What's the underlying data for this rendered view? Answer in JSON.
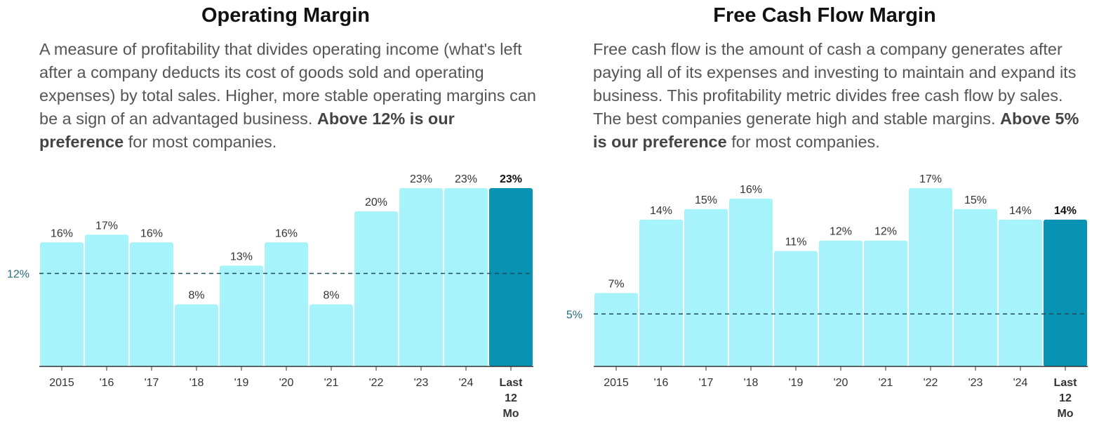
{
  "colors": {
    "bar": "#a7f3fb",
    "highlight": "#0892b3",
    "ref_line": "#1e4c5a",
    "ref_label": "#2a6b80",
    "axis": "#333333",
    "text": "#333333"
  },
  "panels": [
    {
      "title": "Operating Margin",
      "desc_pre": "A measure of profitability that divides operating income (what's left after a company deducts its cost of goods sold and operating expenses) by total sales. Higher, more stable operating margins can be a sign of an advantaged business. ",
      "desc_bold": "Above 12% is our preference",
      "desc_post": " for most companies."
    },
    {
      "title": "Free Cash Flow Margin",
      "desc_pre": "Free cash flow is the amount of cash a company generates after paying all of its expenses and investing to maintain and expand its business. This profitability metric divides free cash flow by sales. The best companies generate high and stable margins. ",
      "desc_bold": "Above 5% is our preference",
      "desc_post": " for most companies."
    }
  ],
  "chart_data": [
    {
      "type": "bar",
      "title": "Operating Margin",
      "categories": [
        "2015",
        "'16",
        "'17",
        "'18",
        "'19",
        "'20",
        "'21",
        "'22",
        "'23",
        "'24",
        "Last 12 Mo"
      ],
      "values": [
        16,
        17,
        16,
        8,
        13,
        16,
        8,
        20,
        23,
        23,
        23
      ],
      "labels": [
        "16%",
        "17%",
        "16%",
        "8%",
        "13%",
        "16%",
        "8%",
        "20%",
        "23%",
        "23%",
        "23%"
      ],
      "highlight_index": 10,
      "reference": {
        "value": 12,
        "label": "12%"
      },
      "grid": false,
      "ylim": [
        0,
        23
      ]
    },
    {
      "type": "bar",
      "title": "Free Cash Flow Margin",
      "categories": [
        "2015",
        "'16",
        "'17",
        "'18",
        "'19",
        "'20",
        "'21",
        "'22",
        "'23",
        "'24",
        "Last 12 Mo"
      ],
      "values": [
        7,
        14,
        15,
        16,
        11,
        12,
        12,
        17,
        15,
        14,
        14
      ],
      "labels": [
        "7%",
        "14%",
        "15%",
        "16%",
        "11%",
        "12%",
        "12%",
        "17%",
        "15%",
        "14%",
        "14%"
      ],
      "highlight_index": 10,
      "reference": {
        "value": 5,
        "label": "5%"
      },
      "grid": false,
      "ylim": [
        0,
        17
      ]
    }
  ]
}
